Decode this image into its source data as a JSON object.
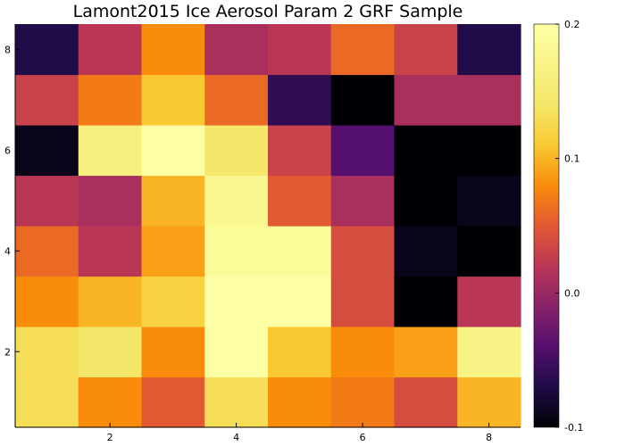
{
  "chart_data": {
    "type": "heatmap",
    "title": "Lamont2015 Ice Aerosol Param 2 GRF Sample",
    "xlabel": "",
    "ylabel": "",
    "x": [
      1,
      2,
      3,
      4,
      5,
      6,
      7,
      8
    ],
    "y": [
      1,
      2,
      3,
      4,
      5,
      6,
      7,
      8
    ],
    "xlim": [
      0.5,
      8.5
    ],
    "ylim": [
      0.5,
      8.5
    ],
    "x_ticks": [
      2,
      4,
      6,
      8
    ],
    "y_ticks": [
      2,
      4,
      6,
      8
    ],
    "colorbar": {
      "min": -0.1,
      "max": 0.2,
      "ticks": [
        0.2,
        0.1,
        0.0,
        -0.1
      ],
      "tick_labels": [
        "0.2",
        "0.1",
        "0.0",
        "-0.1"
      ],
      "colormap": "inferno"
    },
    "z": [
      [
        0.13,
        0.08,
        0.05,
        0.13,
        0.08,
        0.07,
        0.04,
        0.1
      ],
      [
        0.13,
        0.14,
        0.08,
        0.2,
        0.11,
        0.08,
        0.09,
        0.17
      ],
      [
        0.08,
        0.1,
        0.12,
        0.2,
        0.2,
        0.04,
        -0.1,
        0.02
      ],
      [
        0.06,
        0.02,
        0.09,
        0.19,
        0.19,
        0.04,
        -0.09,
        -0.1
      ],
      [
        0.02,
        0.01,
        0.1,
        0.18,
        0.05,
        0.01,
        -0.1,
        -0.09
      ],
      [
        -0.09,
        0.16,
        0.2,
        0.14,
        0.03,
        -0.04,
        -0.1,
        -0.1
      ],
      [
        0.03,
        0.07,
        0.11,
        0.06,
        -0.06,
        -0.1,
        0.01,
        0.01
      ],
      [
        -0.07,
        0.02,
        0.08,
        0.01,
        0.02,
        0.06,
        0.03,
        -0.07
      ]
    ]
  }
}
